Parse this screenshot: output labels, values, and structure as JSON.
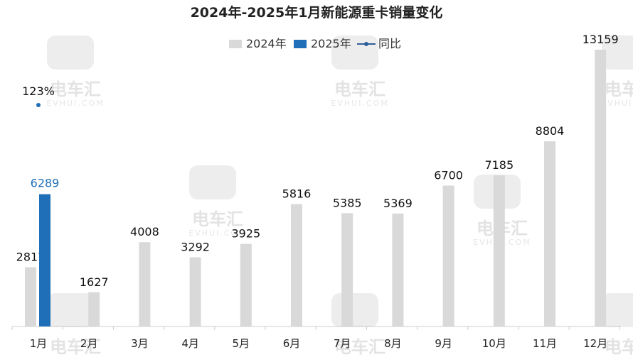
{
  "chart_data": {
    "type": "bar",
    "title": "2024年-2025年1月新能源重卡销量变化",
    "categories": [
      "1月",
      "2月",
      "3月",
      "4月",
      "5月",
      "6月",
      "7月",
      "8月",
      "9月",
      "10月",
      "11月",
      "12月"
    ],
    "series": [
      {
        "name": "2024年",
        "color": "#d9d9d9",
        "values": [
          2817,
          1627,
          4008,
          3292,
          3925,
          5816,
          5385,
          5369,
          6700,
          7185,
          8804,
          13159
        ]
      },
      {
        "name": "2025年",
        "color": "#1f6fb8",
        "values": [
          6289,
          null,
          null,
          null,
          null,
          null,
          null,
          null,
          null,
          null,
          null,
          null
        ]
      },
      {
        "name": "同比",
        "type": "line",
        "color": "#1f6fb8",
        "values": [
          1.23,
          null,
          null,
          null,
          null,
          null,
          null,
          null,
          null,
          null,
          null,
          null
        ],
        "labels": [
          "123%"
        ]
      }
    ],
    "legend_position": "top",
    "grid": false
  },
  "watermark": {
    "logo_text": "电车汇",
    "sub_text": "EVHUI.COM"
  }
}
